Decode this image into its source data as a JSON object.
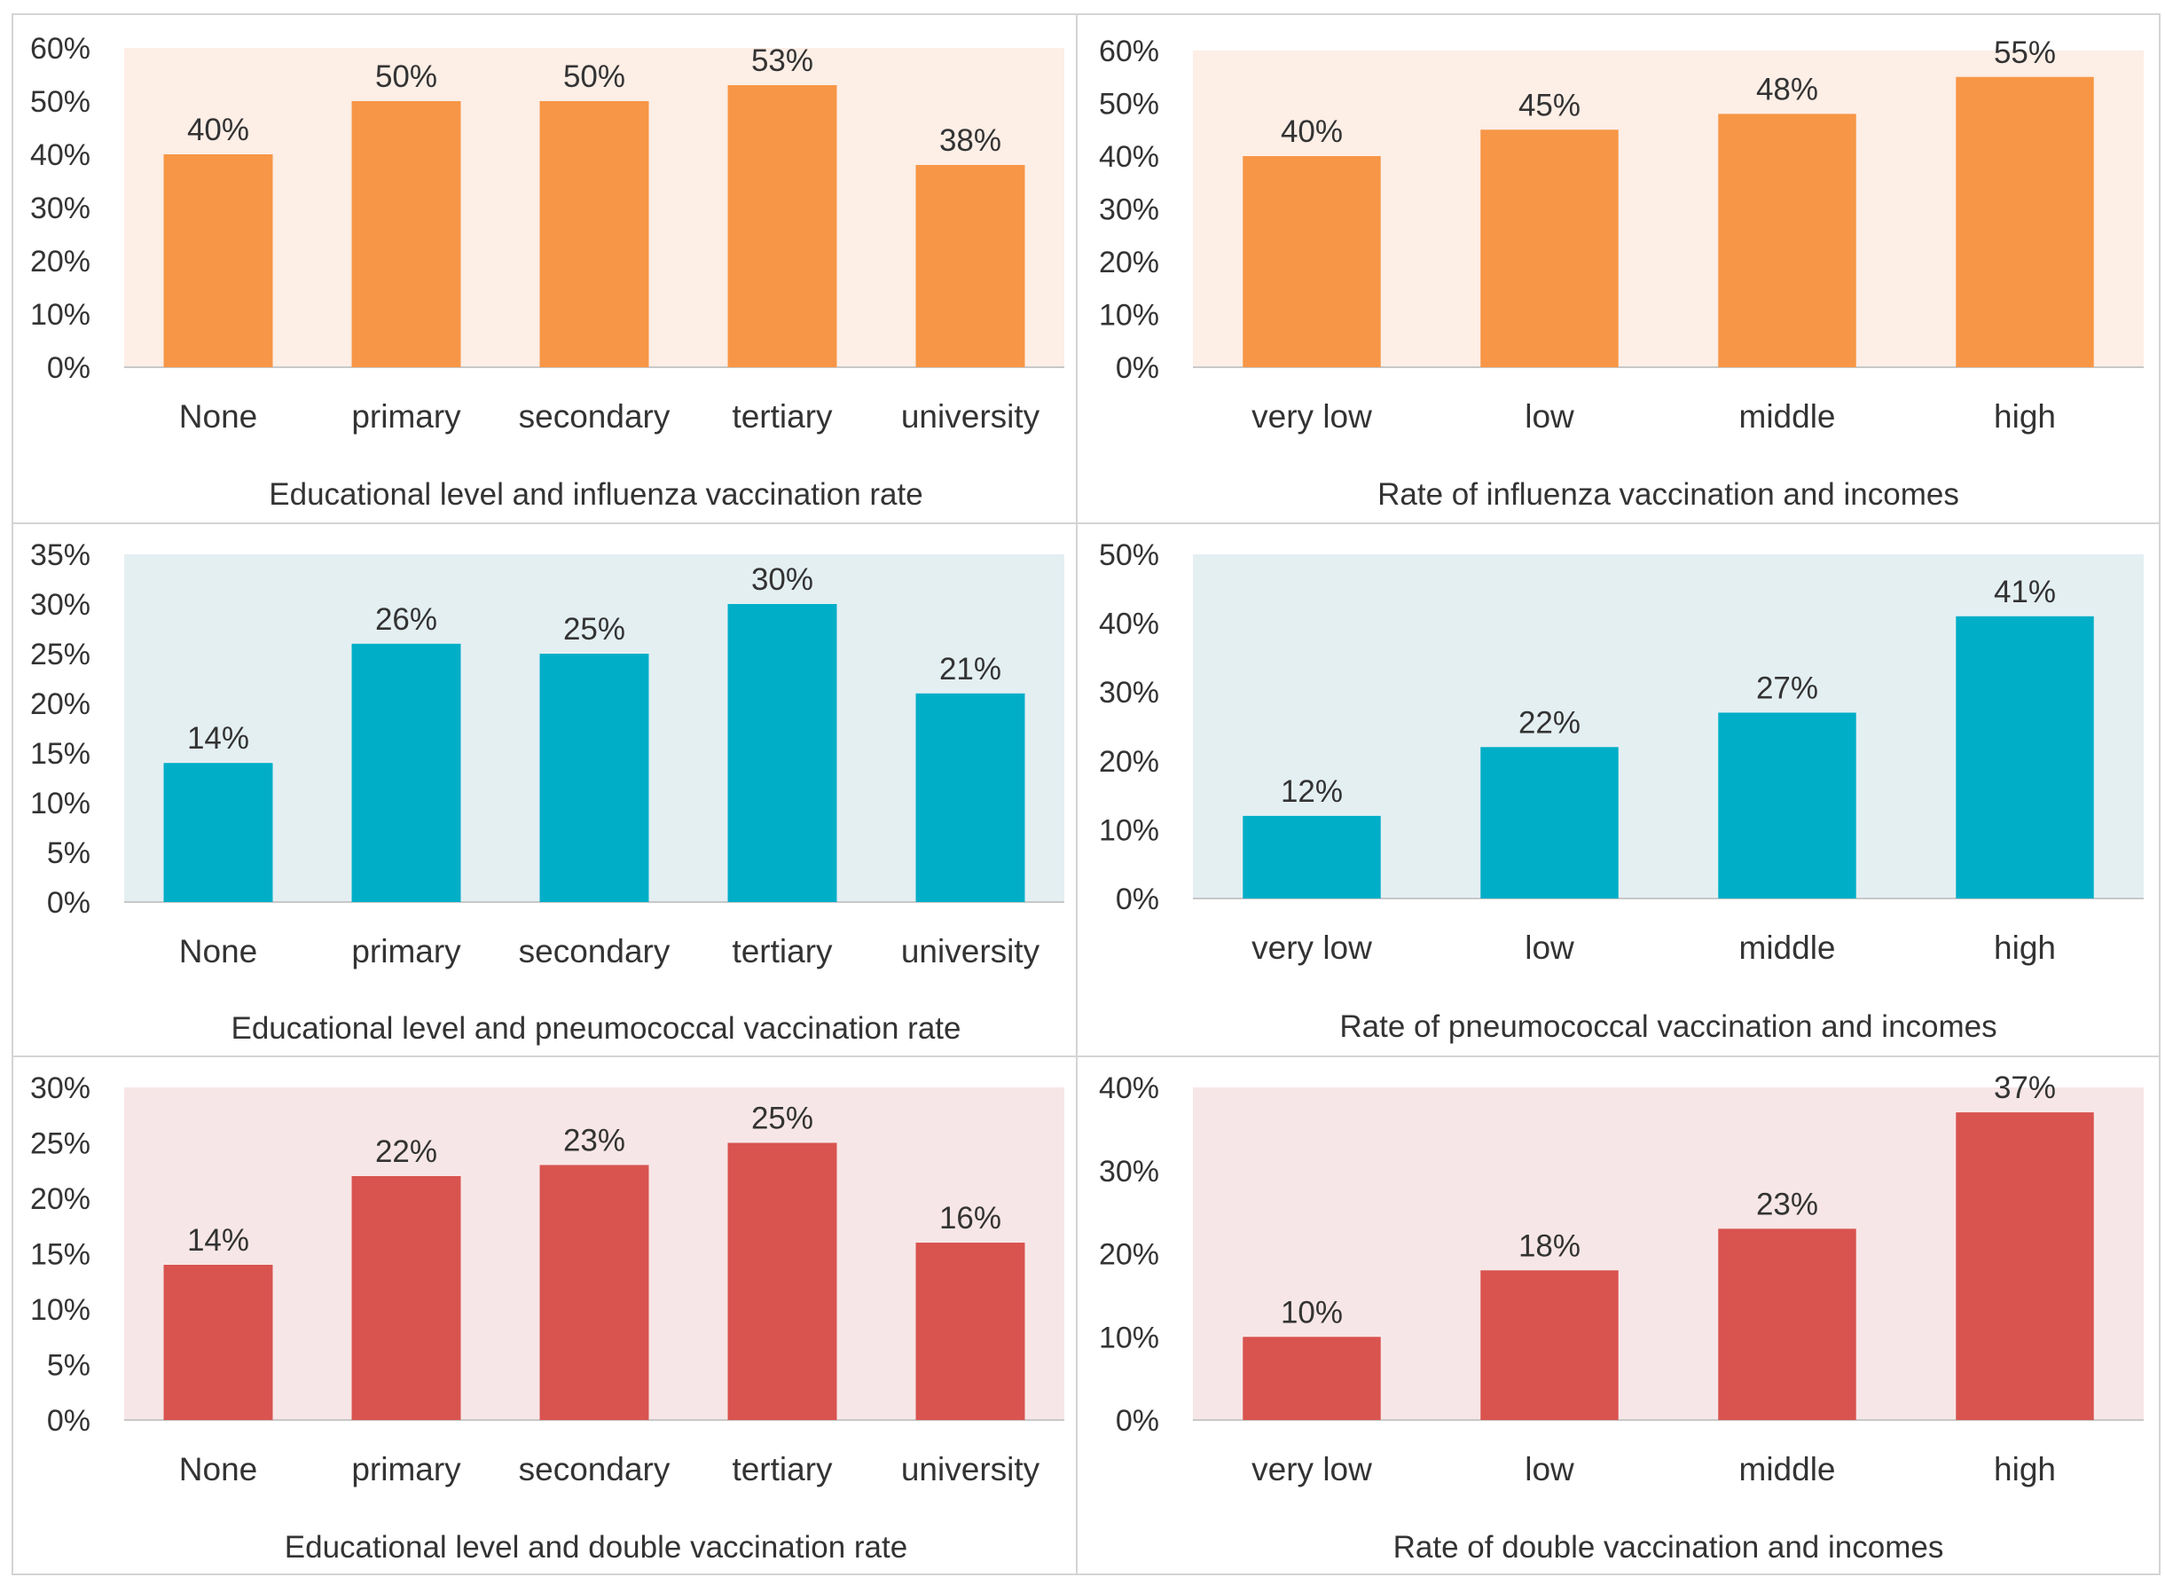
{
  "colors": {
    "orange": "#f79646",
    "orange_bg": "#fdeee6",
    "teal": "#00aec7",
    "teal_bg": "#e4eff2",
    "red": "#d9534f",
    "red_bg": "#f7e6e7",
    "border": "#d4d4d4",
    "text": "#333333"
  },
  "chart_data": [
    {
      "type": "bar",
      "title": "Educational level and influenza vaccination rate",
      "categories": [
        "None",
        "primary",
        "secondary",
        "tertiary",
        "university"
      ],
      "values": [
        40,
        50,
        50,
        53,
        38
      ],
      "value_labels": [
        "40%",
        "50%",
        "50%",
        "53%",
        "38%"
      ],
      "ylim": [
        0,
        60
      ],
      "yticks": [
        "0%",
        "10%",
        "20%",
        "30%",
        "40%",
        "50%",
        "60%"
      ],
      "palette": "orange"
    },
    {
      "type": "bar",
      "title": "Rate of influenza vaccination and incomes",
      "categories": [
        "very low",
        "low",
        "middle",
        "high"
      ],
      "values": [
        40,
        45,
        48,
        55
      ],
      "value_labels": [
        "40%",
        "45%",
        "48%",
        "55%"
      ],
      "ylim": [
        0,
        60
      ],
      "yticks": [
        "0%",
        "10%",
        "20%",
        "30%",
        "40%",
        "50%",
        "60%"
      ],
      "palette": "orange"
    },
    {
      "type": "bar",
      "title": "Educational level and pneumococcal vaccination rate",
      "categories": [
        "None",
        "primary",
        "secondary",
        "tertiary",
        "university"
      ],
      "values": [
        14,
        26,
        25,
        30,
        21
      ],
      "value_labels": [
        "14%",
        "26%",
        "25%",
        "30%",
        "21%"
      ],
      "ylim": [
        0,
        35
      ],
      "yticks": [
        "0%",
        "5%",
        "10%",
        "15%",
        "20%",
        "25%",
        "30%",
        "35%"
      ],
      "palette": "teal"
    },
    {
      "type": "bar",
      "title": "Rate of pneumococcal vaccination and incomes",
      "categories": [
        "very low",
        "low",
        "middle",
        "high"
      ],
      "values": [
        12,
        22,
        27,
        41
      ],
      "value_labels": [
        "12%",
        "22%",
        "27%",
        "41%"
      ],
      "ylim": [
        0,
        50
      ],
      "yticks": [
        "0%",
        "10%",
        "20%",
        "30%",
        "40%",
        "50%"
      ],
      "palette": "teal"
    },
    {
      "type": "bar",
      "title": "Educational level and double vaccination rate",
      "categories": [
        "None",
        "primary",
        "secondary",
        "tertiary",
        "university"
      ],
      "values": [
        14,
        22,
        23,
        25,
        16
      ],
      "value_labels": [
        "14%",
        "22%",
        "23%",
        "25%",
        "16%"
      ],
      "ylim": [
        0,
        30
      ],
      "yticks": [
        "0%",
        "5%",
        "10%",
        "15%",
        "20%",
        "25%",
        "30%"
      ],
      "palette": "red"
    },
    {
      "type": "bar",
      "title": "Rate of double vaccination and incomes",
      "categories": [
        "very low",
        "low",
        "middle",
        "high"
      ],
      "values": [
        10,
        18,
        23,
        37
      ],
      "value_labels": [
        "10%",
        "18%",
        "23%",
        "37%"
      ],
      "ylim": [
        0,
        40
      ],
      "yticks": [
        "0%",
        "10%",
        "20%",
        "30%",
        "40%"
      ],
      "palette": "red"
    }
  ]
}
